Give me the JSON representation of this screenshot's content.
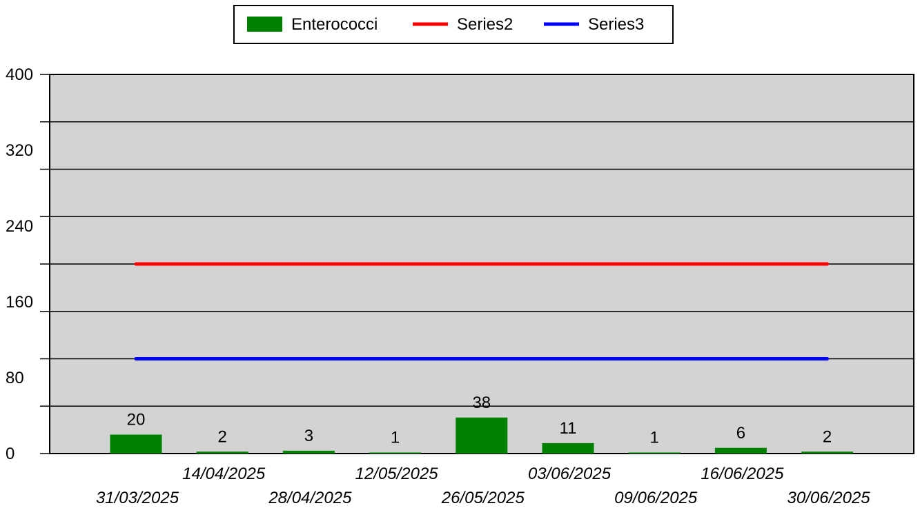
{
  "chart_data": {
    "type": "bar",
    "categories": [
      "31/03/2025",
      "14/04/2025",
      "28/04/2025",
      "12/05/2025",
      "26/05/2025",
      "03/06/2025",
      "09/06/2025",
      "16/06/2025",
      "30/06/2025"
    ],
    "series": [
      {
        "name": "Enterococci",
        "type": "bar",
        "color": "#008000",
        "values": [
          20,
          2,
          3,
          1,
          38,
          11,
          1,
          6,
          2
        ]
      },
      {
        "name": "Series2",
        "type": "line",
        "color": "#ff0000",
        "values": [
          200,
          200,
          200,
          200,
          200,
          200,
          200,
          200,
          200
        ]
      },
      {
        "name": "Series3",
        "type": "line",
        "color": "#0000ff",
        "values": [
          100,
          100,
          100,
          100,
          100,
          100,
          100,
          100,
          100
        ]
      }
    ],
    "ylim": [
      0,
      400
    ],
    "yticks": [
      0,
      80,
      160,
      240,
      320,
      400
    ],
    "y_gridline_step": 50,
    "grid": true,
    "legend_position": "top-center",
    "plot_background": "#d3d3d3"
  }
}
